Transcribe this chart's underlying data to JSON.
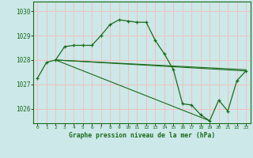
{
  "title": "Graphe pression niveau de la mer (hPa)",
  "background_color": "#cce8e8",
  "grid_color": "#f0c0c0",
  "line_color": "#1a6b1a",
  "x_ticks": [
    0,
    1,
    2,
    3,
    4,
    5,
    6,
    7,
    8,
    9,
    10,
    11,
    12,
    13,
    14,
    15,
    16,
    17,
    18,
    19,
    20,
    21,
    22,
    23
  ],
  "y_ticks": [
    1026,
    1027,
    1028,
    1029,
    1030
  ],
  "ylim": [
    1025.4,
    1030.4
  ],
  "xlim": [
    -0.5,
    23.5
  ],
  "main_series_x": [
    0,
    1,
    2,
    3,
    4,
    5,
    6,
    7,
    8,
    9,
    10,
    11,
    12,
    13,
    14,
    15,
    16,
    17,
    18,
    19,
    20,
    21,
    22,
    23
  ],
  "main_series_y": [
    1027.25,
    1027.9,
    1028.0,
    1028.55,
    1028.6,
    1028.6,
    1028.6,
    1029.0,
    1029.45,
    1029.65,
    1029.6,
    1029.55,
    1029.55,
    1028.8,
    1028.25,
    1027.6,
    1026.2,
    1026.15,
    1025.75,
    1025.5,
    1026.35,
    1025.9,
    1027.15,
    1027.55
  ],
  "ref_lines": [
    {
      "x": [
        2,
        23
      ],
      "y": [
        1028.0,
        1027.6
      ]
    },
    {
      "x": [
        2,
        23
      ],
      "y": [
        1028.0,
        1027.55
      ]
    },
    {
      "x": [
        2,
        19
      ],
      "y": [
        1028.0,
        1025.5
      ]
    }
  ]
}
